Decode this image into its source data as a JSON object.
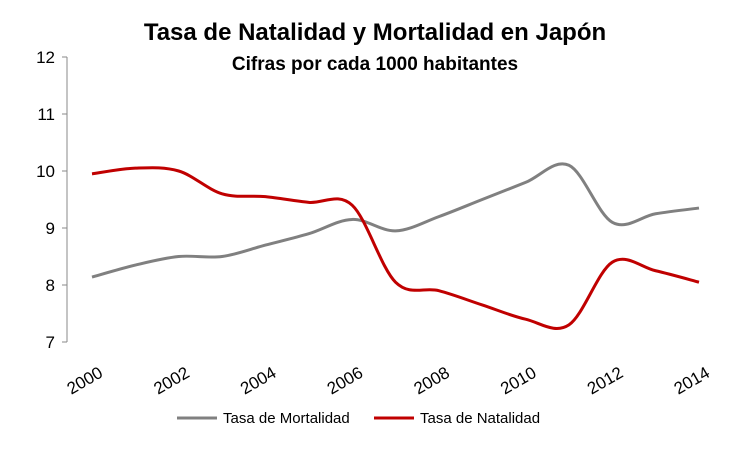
{
  "chart_data": {
    "type": "line",
    "title": "Tasa de Natalidad y Mortalidad  en Japón",
    "subtitle": "Cifras por cada 1000 habitantes",
    "x": [
      2000,
      2001,
      2002,
      2003,
      2004,
      2005,
      2006,
      2007,
      2008,
      2009,
      2010,
      2011,
      2012,
      2013,
      2014
    ],
    "xlim": [
      2000,
      2014
    ],
    "xticks": [
      2000,
      2002,
      2004,
      2006,
      2008,
      2010,
      2012,
      2014
    ],
    "ylim": [
      7,
      12
    ],
    "yticks": [
      7,
      8,
      9,
      10,
      11,
      12
    ],
    "legend": "bottom",
    "series": [
      {
        "name": "Tasa de Mortalidad",
        "color": "#808080",
        "values": [
          8.14,
          8.35,
          8.5,
          8.5,
          8.7,
          8.9,
          9.15,
          8.95,
          9.2,
          9.5,
          9.8,
          10.1,
          9.1,
          9.25,
          9.35
        ]
      },
      {
        "name": "Tasa de Natalidad",
        "color": "#c00000",
        "values": [
          9.95,
          10.05,
          10.0,
          9.6,
          9.55,
          9.45,
          9.4,
          8.05,
          7.9,
          7.65,
          7.4,
          7.3,
          8.4,
          8.25,
          8.05
        ]
      }
    ]
  }
}
